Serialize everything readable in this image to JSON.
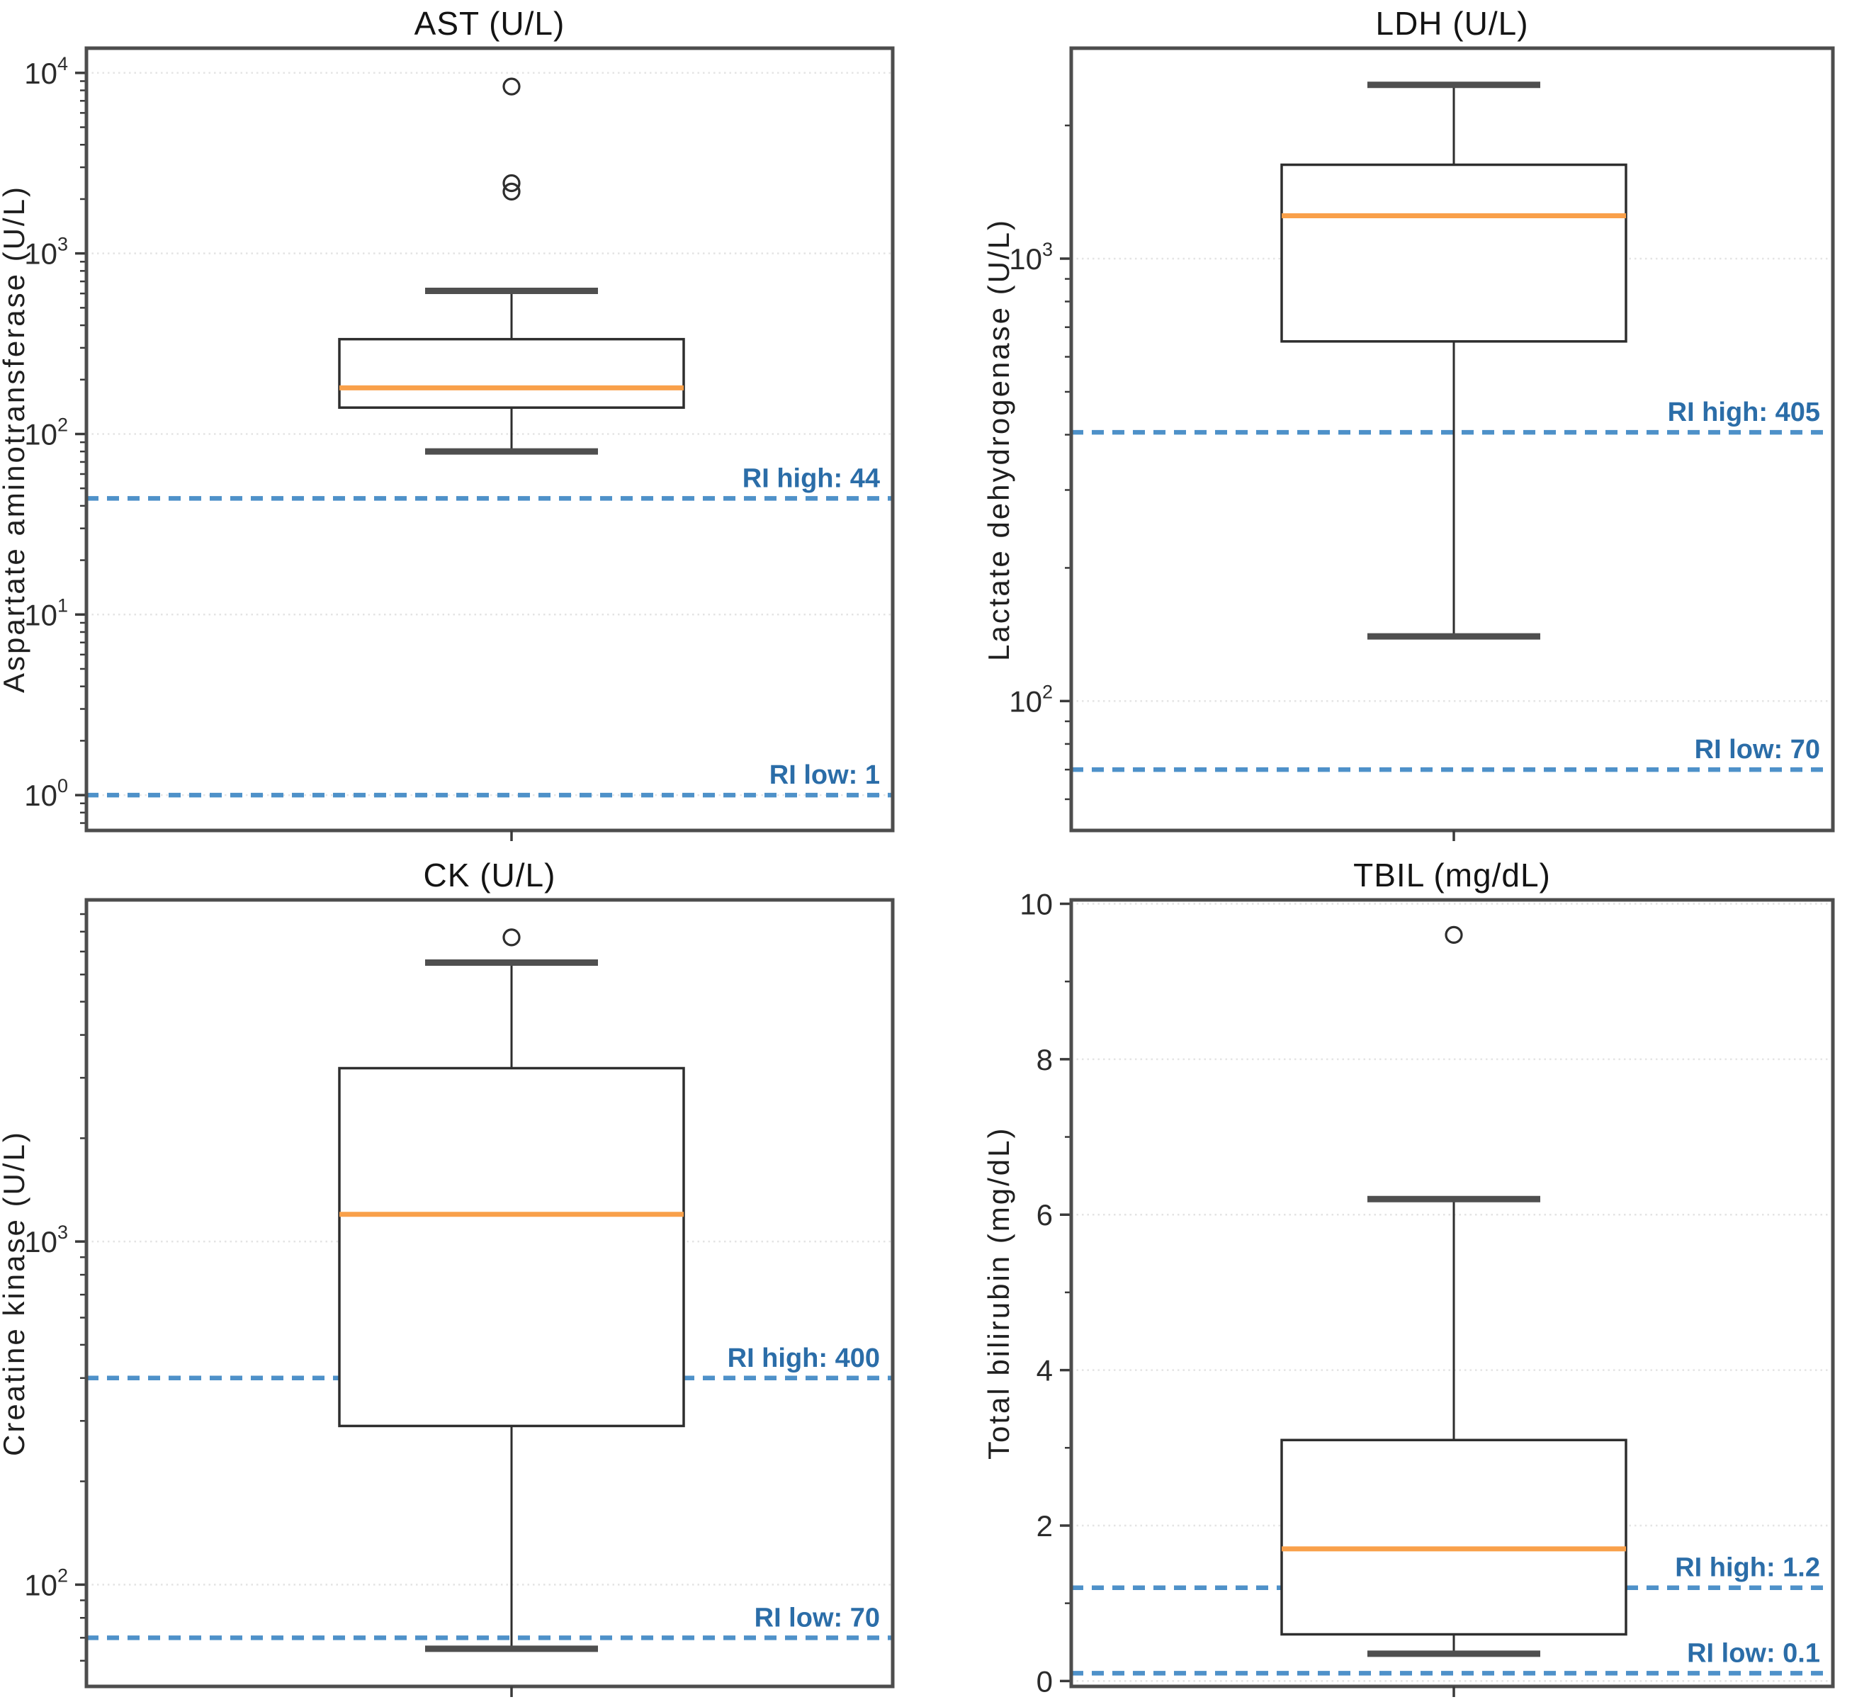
{
  "figure_title": "",
  "colors": {
    "frame": "#4d4d4d",
    "grid": "#e4e4e4",
    "tick": "#3a3a3a",
    "tick_text": "#2b2b2b",
    "box_edge": "#2e2e2e",
    "whisker": "#2e2e2e",
    "cap": "#4f4f4f",
    "median": "#f9a04a",
    "ri_line": "#4e91c9",
    "ri_text": "#2b6da8",
    "outlier": "#2e2e2e",
    "background": "#ffffff"
  },
  "chart_data": [
    {
      "type": "boxplot",
      "title": "AST (U/L)",
      "ylabel": "Aspartate aminotransferase (U/L)",
      "yscale": "log",
      "ylim": [
        0.637,
        13700
      ],
      "ytick_exponents": [
        4,
        3,
        2,
        1,
        0
      ],
      "grid": true,
      "box": {
        "whisker_low": 80,
        "q1": 140,
        "median": 180,
        "q3": 335,
        "whisker_high": 620,
        "outliers": [
          2200,
          2450,
          8400
        ]
      },
      "ri_high": {
        "label": "RI high: 44",
        "value": 44
      },
      "ri_low": {
        "label": "RI low: 1",
        "value": 1
      }
    },
    {
      "type": "boxplot",
      "title": "LDH (U/L)",
      "ylabel": "Lactate dehydrogenase (U/L)",
      "yscale": "log",
      "ylim": [
        51,
        2990
      ],
      "ytick_exponents": [
        3,
        2
      ],
      "grid": true,
      "box": {
        "whisker_low": 140,
        "q1": 650,
        "median": 1250,
        "q3": 1630,
        "whisker_high": 2470,
        "outliers": []
      },
      "ri_high": {
        "label": "RI high: 405",
        "value": 405
      },
      "ri_low": {
        "label": "RI low: 70",
        "value": 70
      }
    },
    {
      "type": "boxplot",
      "title": "CK (U/L)",
      "ylabel": "Creatine kinase (U/L)",
      "yscale": "log",
      "ylim": [
        50.5,
        9900
      ],
      "ytick_exponents": [
        3,
        2
      ],
      "grid": true,
      "box": {
        "whisker_low": 65,
        "q1": 290,
        "median": 1200,
        "q3": 3200,
        "whisker_high": 6500,
        "outliers": [
          7700
        ]
      },
      "ri_high": {
        "label": "RI high: 400",
        "value": 400
      },
      "ri_low": {
        "label": "RI low: 70",
        "value": 70
      }
    },
    {
      "type": "boxplot",
      "title": "TBIL (mg/dL)",
      "ylabel": "Total bilirubin (mg/dL)",
      "yscale": "linear",
      "ylim": [
        -0.07,
        10.05
      ],
      "yticks": [
        10,
        8,
        6,
        4,
        2,
        0
      ],
      "grid": true,
      "box": {
        "whisker_low": 0.35,
        "q1": 0.6,
        "median": 1.7,
        "q3": 3.1,
        "whisker_high": 6.2,
        "outliers": [
          9.6
        ]
      },
      "ri_high": {
        "label": "RI high: 1.2",
        "value": 1.2
      },
      "ri_low": {
        "label": "RI low: 0.1",
        "value": 0.1
      }
    }
  ]
}
